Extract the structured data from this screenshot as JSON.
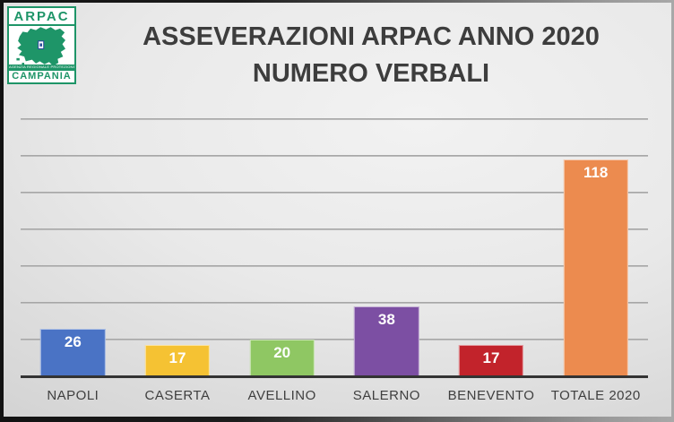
{
  "logo": {
    "org_acronym": "ARPAC",
    "org_full_name": "AGENZIA REGIONALE PROTEZIONE AMBIENTALE",
    "region": "CAMPANIA",
    "brand_green": "#1E9568"
  },
  "title": {
    "line1": "ASSEVERAZIONI ARPAC ANNO 2020",
    "line2": "NUMERO VERBALI",
    "color": "#3D3D3D"
  },
  "chart_data": {
    "type": "bar",
    "title": "ASSEVERAZIONI ARPAC ANNO 2020 NUMERO VERBALI",
    "categories": [
      "NAPOLI",
      "CASERTA",
      "AVELLINO",
      "SALERNO",
      "BENEVENTO",
      "TOTALE 2020"
    ],
    "values": [
      26,
      17,
      20,
      38,
      17,
      118
    ],
    "bar_colors": [
      "#4A73C5",
      "#F5C233",
      "#8FC763",
      "#7C4FA3",
      "#C2232B",
      "#EC8B4F"
    ],
    "value_label_color": "#FFFFFF",
    "xlabel": "",
    "ylabel": "",
    "ylim": [
      0,
      140
    ],
    "gridline_step": 20,
    "grid": true,
    "legend": false,
    "gridline_color": "#A6A6A6",
    "axis_line_color": "#333333",
    "category_label_color": "#3F3F3F"
  }
}
